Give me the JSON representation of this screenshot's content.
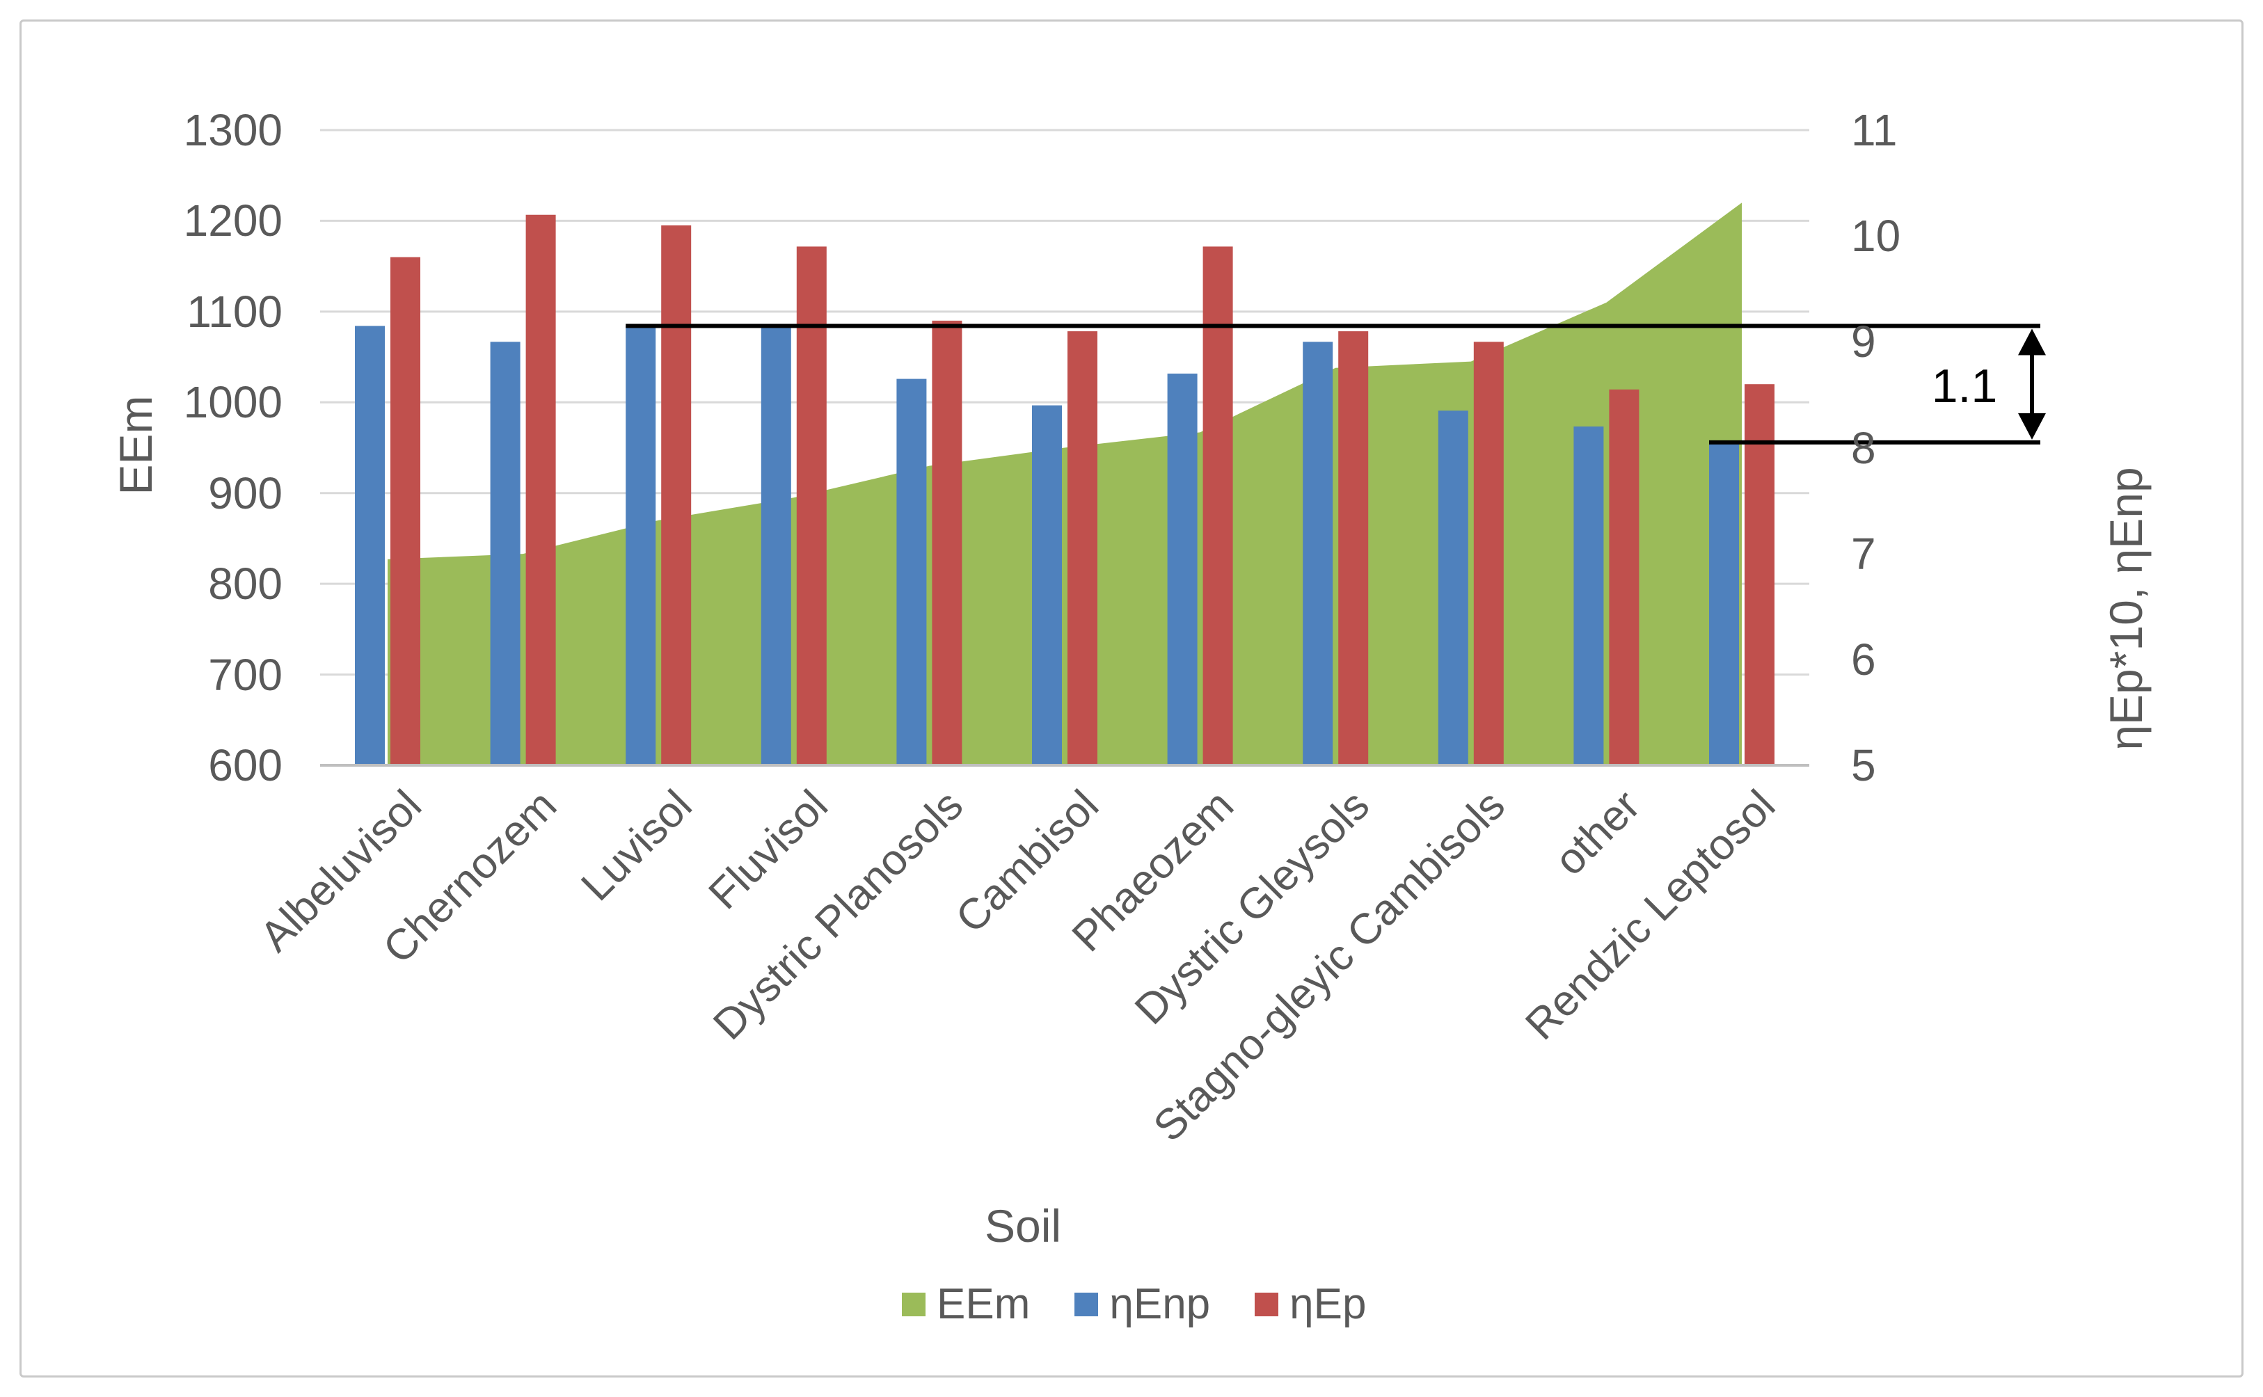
{
  "chart_data": {
    "type": "combo",
    "title": "",
    "categories": [
      "Albeluvisol",
      "Chernozem",
      "Luvisol",
      "Fluvisol",
      "Dystric Planosols",
      "Cambisol",
      "Phaeozem",
      "Dystric Gleysols",
      "Stagno-gleyic Cambisols",
      "other",
      "Rendzic Leptosol"
    ],
    "series": [
      {
        "name": "EEm",
        "type": "area",
        "axis": "left",
        "color": "#9BBB59",
        "values": [
          827,
          833,
          870,
          895,
          930,
          950,
          967,
          1038,
          1045,
          1110,
          1220
        ]
      },
      {
        "name": "ηEnp",
        "type": "bar",
        "axis": "right",
        "color": "#4F81BD",
        "values": [
          9.15,
          9.0,
          9.15,
          9.15,
          8.65,
          8.4,
          8.7,
          9.0,
          8.35,
          8.2,
          8.05
        ]
      },
      {
        "name": "ηEp",
        "type": "bar",
        "axis": "right",
        "color": "#C0504D",
        "values": [
          9.8,
          10.2,
          10.1,
          9.9,
          9.2,
          9.1,
          9.9,
          9.1,
          9.0,
          8.55,
          8.6
        ]
      }
    ],
    "left_axis": {
      "title": "EEm",
      "min": 600,
      "max": 1300,
      "tick_step": 100,
      "ticks": [
        "1300",
        "1200",
        "1100",
        "1000",
        "900",
        "800",
        "700",
        "600"
      ]
    },
    "right_axis": {
      "title": "ηEp*10, ηEnp",
      "min": 5,
      "max": 11,
      "tick_step": 1,
      "ticks": [
        "11",
        "10",
        "9",
        "8",
        "7",
        "6",
        "5"
      ]
    },
    "x_axis": {
      "title": "Soil"
    },
    "annotation": {
      "label": "1.1",
      "top_value": 9.15,
      "bottom_value": 8.05
    },
    "legend_position": "bottom",
    "grid": true,
    "colors": {
      "gridline": "#D9D9D9",
      "axis_line": "#BFBFBF",
      "text": "#595959",
      "annotation": "#000000"
    }
  }
}
